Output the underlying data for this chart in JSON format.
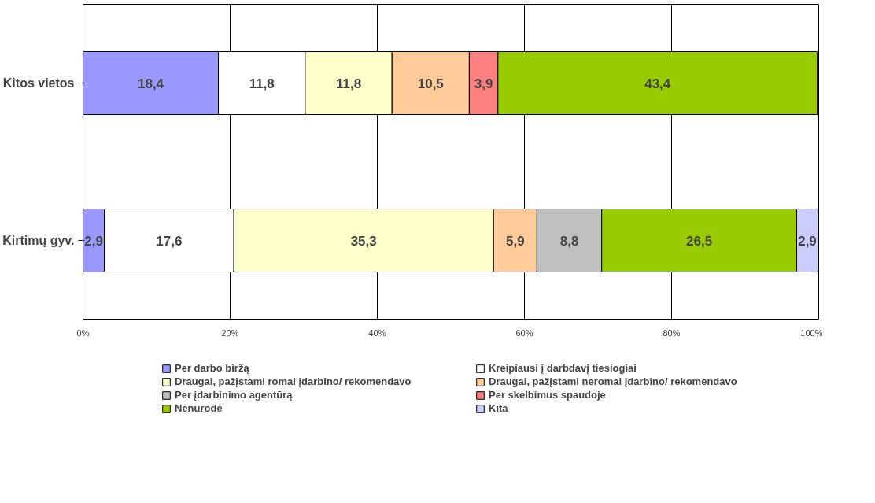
{
  "chart_data": {
    "type": "bar",
    "orientation": "horizontal",
    "stacked": true,
    "categories": [
      "Kitos vietos",
      "Kirtimų gyv."
    ],
    "series": [
      {
        "name": "Per darbo biržą",
        "color": "#9999ff",
        "values": [
          18.4,
          2.9
        ],
        "value_labels": [
          "18,4",
          "2,9"
        ]
      },
      {
        "name": "Kreipiausi į darbdavį tiesiogiai",
        "color": "#ffffff",
        "values": [
          11.8,
          17.6
        ],
        "value_labels": [
          "11,8",
          "17,6"
        ]
      },
      {
        "name": "Draugai, pažįstami romai įdarbino/ rekomendavo",
        "color": "#ffffcc",
        "values": [
          11.8,
          35.3
        ],
        "value_labels": [
          "11,8",
          "35,3"
        ]
      },
      {
        "name": "Draugai, pažįstami neromai įdarbino/ rekomendavo",
        "color": "#ffcc99",
        "values": [
          10.5,
          5.9
        ],
        "value_labels": [
          "10,5",
          "5,9"
        ]
      },
      {
        "name": "Per įdarbinimo agentūrą",
        "color": "#c0c0c0",
        "values": [
          null,
          8.8
        ],
        "value_labels": [
          null,
          "8,8"
        ]
      },
      {
        "name": "Per skelbimus spaudoje",
        "color": "#ff8080",
        "values": [
          3.9,
          null
        ],
        "value_labels": [
          "3,9",
          null
        ]
      },
      {
        "name": "Nenurodė",
        "color": "#99cc00",
        "values": [
          43.4,
          26.5
        ],
        "value_labels": [
          "43,4",
          "26,5"
        ]
      },
      {
        "name": "Kita",
        "color": "#ccccff",
        "values": [
          null,
          2.9
        ],
        "value_labels": [
          null,
          "2,9"
        ]
      }
    ],
    "xlim": [
      0,
      100
    ],
    "xticks": [
      {
        "value": 0,
        "label": "0%"
      },
      {
        "value": 20,
        "label": "20%"
      },
      {
        "value": 40,
        "label": "40%"
      },
      {
        "value": 60,
        "label": "60%"
      },
      {
        "value": 80,
        "label": "80%"
      },
      {
        "value": 100,
        "label": "100%"
      }
    ],
    "grid": "x",
    "legend": "bottom"
  }
}
